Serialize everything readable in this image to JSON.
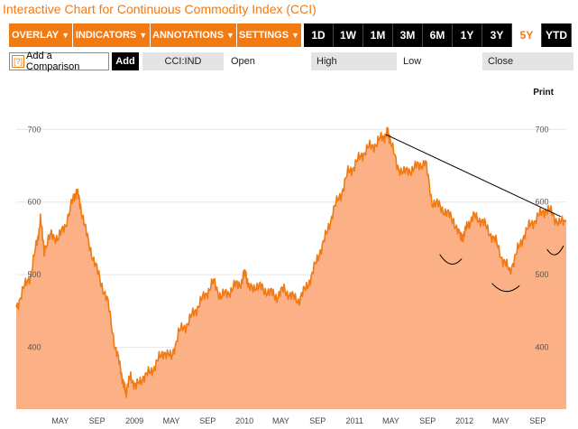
{
  "title": "Interactive Chart for Continuous Commodity Index (CCI)",
  "toolbar": {
    "menus": [
      {
        "label": "OVERLAY",
        "arrow": "▼"
      },
      {
        "label": "INDICATORS",
        "arrow": "▼"
      },
      {
        "label": "ANNOTATIONS",
        "arrow": "▼"
      },
      {
        "label": "SETTINGS",
        "arrow": "▼"
      }
    ],
    "ranges": [
      "1D",
      "1W",
      "1M",
      "3M",
      "6M",
      "1Y",
      "3Y",
      "5Y",
      "YTD"
    ],
    "active_range": "5Y"
  },
  "comparison": {
    "help_glyph": "[?]",
    "placeholder": "Add a Comparison",
    "add_label": "Add",
    "symbol": "CCI:IND",
    "open_label": "Open",
    "high_label": "High",
    "low_label": "Low",
    "close_label": "Close"
  },
  "print_label": "Print",
  "colors": {
    "accent": "#f27a13",
    "line": "#f07a14",
    "fill": "#fbb085"
  },
  "chart_data": {
    "type": "area",
    "ylim": [
      315,
      760
    ],
    "yticks": [
      400,
      500,
      600,
      700
    ],
    "x_labels": [
      "MAY",
      "SEP",
      "2009",
      "MAY",
      "SEP",
      "2010",
      "MAY",
      "SEP",
      "2011",
      "MAY",
      "SEP",
      "2012",
      "MAY",
      "SEP"
    ],
    "x_label_pos": [
      0.08,
      0.147,
      0.215,
      0.282,
      0.348,
      0.415,
      0.481,
      0.548,
      0.615,
      0.681,
      0.748,
      0.815,
      0.881,
      0.948
    ],
    "x": [
      0.0,
      0.013,
      0.026,
      0.038,
      0.044,
      0.051,
      0.064,
      0.077,
      0.09,
      0.104,
      0.11,
      0.117,
      0.128,
      0.141,
      0.154,
      0.167,
      0.18,
      0.19,
      0.196,
      0.2,
      0.208,
      0.218,
      0.231,
      0.244,
      0.256,
      0.269,
      0.282,
      0.295,
      0.308,
      0.321,
      0.333,
      0.346,
      0.359,
      0.372,
      0.385,
      0.398,
      0.41,
      0.417,
      0.423,
      0.436,
      0.449,
      0.462,
      0.474,
      0.487,
      0.5,
      0.513,
      0.526,
      0.538,
      0.551,
      0.564,
      0.577,
      0.59,
      0.603,
      0.615,
      0.628,
      0.641,
      0.654,
      0.667,
      0.675,
      0.679,
      0.692,
      0.705,
      0.718,
      0.731,
      0.744,
      0.756,
      0.769,
      0.782,
      0.795,
      0.808,
      0.814,
      0.821,
      0.833,
      0.846,
      0.859,
      0.872,
      0.885,
      0.897,
      0.91,
      0.923,
      0.936,
      0.949,
      0.962,
      0.974,
      0.987,
      1.0
    ],
    "values": [
      455,
      480,
      500,
      545,
      575,
      535,
      555,
      550,
      570,
      605,
      615,
      595,
      555,
      520,
      490,
      460,
      400,
      370,
      345,
      340,
      360,
      345,
      360,
      365,
      380,
      395,
      385,
      420,
      430,
      445,
      460,
      475,
      490,
      470,
      475,
      485,
      490,
      505,
      480,
      485,
      480,
      475,
      470,
      480,
      470,
      465,
      480,
      500,
      530,
      555,
      590,
      610,
      640,
      650,
      665,
      675,
      680,
      690,
      695,
      690,
      650,
      640,
      645,
      650,
      655,
      600,
      595,
      585,
      575,
      550,
      555,
      570,
      580,
      575,
      560,
      545,
      520,
      505,
      530,
      555,
      570,
      580,
      590,
      585,
      570,
      575
    ],
    "trendline": {
      "x": [
        0.672,
        0.99
      ],
      "y": [
        693,
        580
      ]
    },
    "annotations": [
      {
        "type": "arc",
        "x": [
          0.77,
          0.81
        ],
        "y": [
          528,
          522
        ]
      },
      {
        "type": "arc",
        "x": [
          0.865,
          0.915
        ],
        "y": [
          488,
          485
        ]
      },
      {
        "type": "arc",
        "x": [
          0.965,
          0.995
        ],
        "y": [
          535,
          540
        ]
      }
    ]
  }
}
